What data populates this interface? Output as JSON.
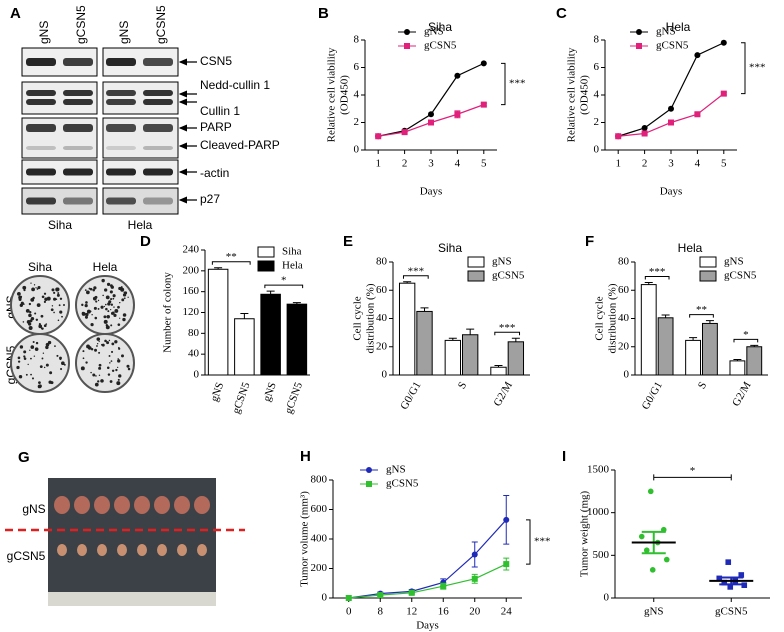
{
  "panel_a": {
    "lanes": [
      "gNS",
      "gCSN5",
      "gNS",
      "gCSN5"
    ],
    "proteins": [
      "CSN5",
      "Nedd-cullin 1",
      "Cullin 1",
      "PARP",
      "Cleaved-PARP",
      "-actin",
      "p27"
    ],
    "cells": [
      "Siha",
      "Hela"
    ],
    "label": "A"
  },
  "panel_d_image": {
    "cells": [
      "Siha",
      "Hela"
    ],
    "rows": [
      "gNS",
      "gCSN5"
    ]
  },
  "panel_g": {
    "label": "G",
    "rows": [
      "gNS",
      "gCSN5"
    ]
  },
  "chart_data": [
    {
      "label": "B",
      "type": "line",
      "title": "Siha",
      "xlabel": "Days",
      "ylabel": [
        "Relative cell viability",
        "(OD450)"
      ],
      "x": [
        1,
        2,
        3,
        4,
        5
      ],
      "xlim": [
        0.5,
        5.5
      ],
      "xticks": [
        1,
        2,
        3,
        4,
        5
      ],
      "ylim": [
        0,
        8
      ],
      "yticks": [
        0,
        2,
        4,
        6,
        8
      ],
      "series": [
        {
          "name": "gNS",
          "color": "#000000",
          "marker": "circle",
          "values": [
            1,
            1.4,
            2.6,
            5.4,
            6.3
          ]
        },
        {
          "name": "gCSN5",
          "color": "#e0207a",
          "marker": "square",
          "values": [
            1,
            1.3,
            2.0,
            2.6,
            3.3
          ],
          "errors": [
            0.05,
            0.05,
            0.1,
            0.25,
            0.1
          ]
        }
      ],
      "annotations": [
        "***"
      ]
    },
    {
      "label": "C",
      "type": "line",
      "title": "Hela",
      "xlabel": "Days",
      "ylabel": [
        "Relative cell viability",
        "(OD450)"
      ],
      "x": [
        1,
        2,
        3,
        4,
        5
      ],
      "xlim": [
        0.5,
        5.5
      ],
      "xticks": [
        1,
        2,
        3,
        4,
        5
      ],
      "ylim": [
        0,
        8
      ],
      "yticks": [
        0,
        2,
        4,
        6,
        8
      ],
      "series": [
        {
          "name": "gNS",
          "color": "#000000",
          "marker": "circle",
          "values": [
            1,
            1.6,
            3.0,
            6.9,
            7.8
          ]
        },
        {
          "name": "gCSN5",
          "color": "#e0207a",
          "marker": "square",
          "values": [
            1,
            1.2,
            2.0,
            2.6,
            4.1
          ],
          "errors": [
            0.05,
            0.05,
            0.1,
            0.1,
            0.1
          ]
        }
      ],
      "annotations": [
        "***"
      ]
    },
    {
      "label": "D",
      "type": "bar",
      "ylabel": "Number of colony",
      "categories": [
        "gNS",
        "gCSN5",
        "gNS",
        "gCSN5"
      ],
      "ylim": [
        0,
        240
      ],
      "yticks": [
        0,
        40,
        80,
        120,
        160,
        200,
        240
      ],
      "series": [
        {
          "name": "Siha",
          "color": "#ffffff",
          "values": [
            203,
            108,
            null,
            null
          ],
          "errors": [
            3,
            10,
            null,
            null
          ]
        },
        {
          "name": "Hela",
          "color": "#000000",
          "values": [
            null,
            null,
            155,
            136
          ],
          "errors": [
            null,
            null,
            6,
            3
          ]
        }
      ],
      "annotations": [
        "**",
        "*"
      ]
    },
    {
      "label": "E",
      "type": "bar",
      "title": "Siha",
      "ylabel": [
        "Cell cycle",
        "distribution (%)"
      ],
      "categories": [
        "G0/G1",
        "S",
        "G2/M"
      ],
      "ylim": [
        0,
        80
      ],
      "yticks": [
        0,
        20,
        40,
        60,
        80
      ],
      "series": [
        {
          "name": "gNS",
          "color": "#ffffff",
          "values": [
            65,
            24.5,
            5.5
          ],
          "errors": [
            1,
            1.5,
            1.2
          ]
        },
        {
          "name": "gCSN5",
          "color": "#a0a0a0",
          "values": [
            45,
            28.5,
            23.5
          ],
          "errors": [
            2.5,
            4,
            2.5
          ]
        }
      ],
      "annotations": [
        "***",
        "***"
      ]
    },
    {
      "label": "F",
      "type": "bar",
      "title": "Hela",
      "ylabel": [
        "Cell cycle",
        "distribution (%)"
      ],
      "categories": [
        "G0/G1",
        "S",
        "G2/M"
      ],
      "ylim": [
        0,
        80
      ],
      "yticks": [
        0,
        20,
        40,
        60,
        80
      ],
      "series": [
        {
          "name": "gNS",
          "color": "#ffffff",
          "values": [
            64,
            24.5,
            10
          ],
          "errors": [
            1.5,
            2,
            1
          ]
        },
        {
          "name": "gCSN5",
          "color": "#a0a0a0",
          "values": [
            40.5,
            36.5,
            20
          ],
          "errors": [
            2,
            2,
            1
          ]
        }
      ],
      "annotations": [
        "***",
        "**",
        "*"
      ]
    },
    {
      "label": "H",
      "type": "line",
      "xlabel": "Days",
      "ylabel": "Tumor volume (mm³)",
      "categories": [
        "0",
        "8",
        "12",
        "16",
        "20",
        "24"
      ],
      "ylim": [
        0,
        800
      ],
      "yticks": [
        0,
        200,
        400,
        600,
        800
      ],
      "series": [
        {
          "name": "gNS",
          "color": "#1f2ab8",
          "marker": "circle",
          "values": [
            0,
            30,
            45,
            105,
            295,
            530
          ],
          "errors": [
            0,
            10,
            12,
            25,
            85,
            165
          ]
        },
        {
          "name": "gCSN5",
          "color": "#2fbf2f",
          "marker": "square",
          "values": [
            0,
            20,
            35,
            80,
            130,
            230
          ],
          "errors": [
            0,
            8,
            10,
            20,
            30,
            40
          ]
        }
      ],
      "annotations": [
        "***"
      ]
    },
    {
      "label": "I",
      "type": "scatter",
      "ylabel": "Tumor weight (mg)",
      "categories": [
        "gNS",
        "gCSN5"
      ],
      "ylim": [
        0,
        1500
      ],
      "yticks": [
        0,
        500,
        1000,
        1500
      ],
      "series": [
        {
          "color": "#2fbf2f",
          "marker": "circle",
          "values": [
            1250,
            800,
            720,
            650,
            560,
            450,
            330
          ],
          "mean": 650,
          "error": 125
        },
        {
          "color": "#1f2ab8",
          "marker": "square",
          "values": [
            420,
            270,
            230,
            200,
            180,
            150,
            130
          ],
          "mean": 200,
          "error": 40
        }
      ],
      "annotations": [
        "*"
      ]
    }
  ]
}
